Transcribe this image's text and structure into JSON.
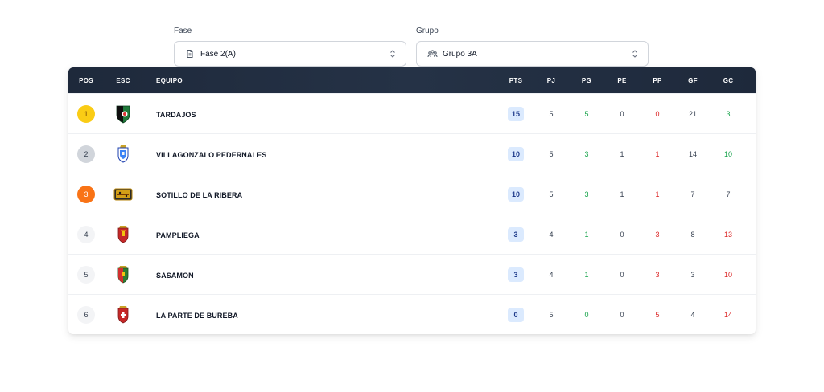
{
  "filters": {
    "fase": {
      "label": "Fase",
      "value": "Fase 2(A)"
    },
    "grupo": {
      "label": "Grupo",
      "value": "Grupo 3A"
    }
  },
  "table": {
    "headers": {
      "pos": "POS",
      "esc": "ESC",
      "equipo": "EQUIPO",
      "pts": "PTS",
      "pj": "PJ",
      "pg": "PG",
      "pe": "PE",
      "pp": "PP",
      "gf": "GF",
      "gc": "GC"
    },
    "rows": [
      {
        "pos": "1",
        "team": "TARDAJOS",
        "pts": "15",
        "pj": "5",
        "pg": "5",
        "pe": "0",
        "pp": "0",
        "gf": "21",
        "gc": "3"
      },
      {
        "pos": "2",
        "team": "VILLAGONZALO PEDERNALES",
        "pts": "10",
        "pj": "5",
        "pg": "3",
        "pe": "1",
        "pp": "1",
        "gf": "14",
        "gc": "10"
      },
      {
        "pos": "3",
        "team": "SOTILLO DE LA RIBERA",
        "pts": "10",
        "pj": "5",
        "pg": "3",
        "pe": "1",
        "pp": "1",
        "gf": "7",
        "gc": "7"
      },
      {
        "pos": "4",
        "team": "PAMPLIEGA",
        "pts": "3",
        "pj": "4",
        "pg": "1",
        "pe": "0",
        "pp": "3",
        "gf": "8",
        "gc": "13"
      },
      {
        "pos": "5",
        "team": "SASAMON",
        "pts": "3",
        "pj": "4",
        "pg": "1",
        "pe": "0",
        "pp": "3",
        "gf": "3",
        "gc": "10"
      },
      {
        "pos": "6",
        "team": "LA PARTE DE BUREBA",
        "pts": "0",
        "pj": "5",
        "pg": "0",
        "pe": "0",
        "pp": "5",
        "gf": "4",
        "gc": "14"
      }
    ]
  },
  "colors": {
    "header_bg": "#1e293b",
    "gold": "#facc15",
    "silver": "#d1d5db",
    "bronze": "#f97316",
    "pts_badge": "#dbeafe",
    "positive": "#16a34a",
    "negative": "#dc2626"
  },
  "icons": {
    "fase": "document-icon",
    "grupo": "group-icon",
    "select": "chevron-up-down-icon"
  }
}
